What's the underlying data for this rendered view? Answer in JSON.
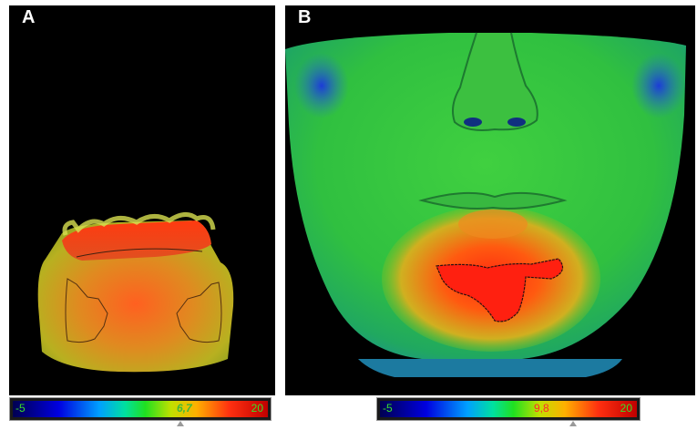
{
  "panels": [
    {
      "letter": "A",
      "colorbar": {
        "min_label": "-5",
        "value_label": "6,7",
        "max_label": "20"
      }
    },
    {
      "letter": "B",
      "colorbar": {
        "min_label": "-5",
        "value_label": "9,8",
        "max_label": "20"
      }
    }
  ],
  "colors": {
    "background": "#000000",
    "scale_low": "#0000e0",
    "scale_mid": "#20e020",
    "scale_high": "#c00000"
  }
}
